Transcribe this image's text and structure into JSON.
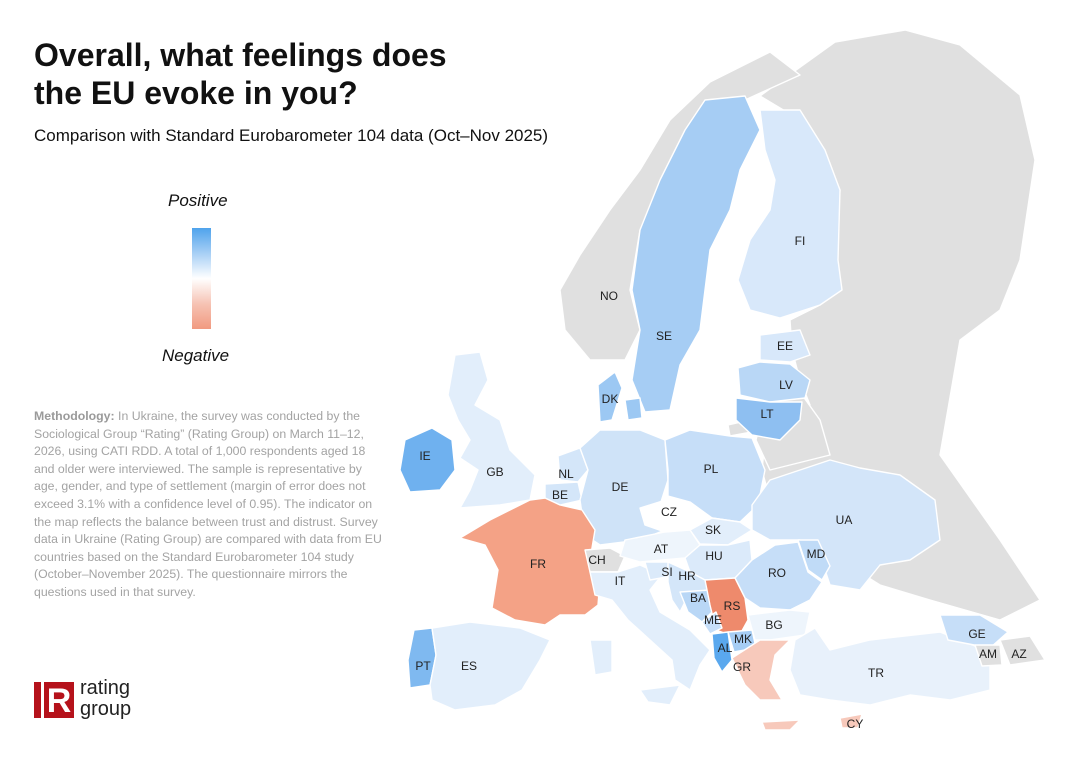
{
  "title": "Overall, what feelings does the EU evoke in you?",
  "subtitle": "Comparison with Standard Eurobarometer 104 data (Oct–Nov 2025)",
  "legend": {
    "top": "Positive",
    "bottom": "Negative"
  },
  "methodology": {
    "label": "Methodology:",
    "text": " In Ukraine, the survey was conducted by the Sociological Group “Rating” (Rating Group) on March 11–12, 2026, using CATI RDD. A total of 1,000 respondents aged 18 and older were interviewed. The sample is representative by age, gender, and type of settlement (margin of error does not exceed 3.1% with a confidence level of 0.95). The indicator on the map reflects the balance between trust and distrust. Survey data in Ukraine (Rating Group) are compared with data from EU countries based on the Standard Eurobarometer 104 study (October–November 2025). The questionnaire mirrors the questions used in that survey."
  },
  "logo": {
    "mark": "R",
    "line1": "rating",
    "line2": "group"
  },
  "colors": {
    "strong_positive": "#5aa8ee",
    "positive": "#9cc8f3",
    "light_positive": "#cfe3f8",
    "pale_positive": "#e2eefb",
    "neutral": "#ffffff",
    "light_negative": "#f7c9bb",
    "negative": "#f4a286",
    "strong_negative": "#ee8a6c",
    "no_data": "#e0e0e0"
  },
  "countries": {
    "NO": {
      "label": "NO",
      "fill": "#e0e0e0"
    },
    "SE": {
      "label": "SE",
      "fill": "#a6cdf4"
    },
    "FI": {
      "label": "FI",
      "fill": "#d8e8fa"
    },
    "EE": {
      "label": "EE",
      "fill": "#d8e8fa"
    },
    "LV": {
      "label": "LV",
      "fill": "#b9d7f6"
    },
    "LT": {
      "label": "LT",
      "fill": "#8ebff1"
    },
    "DK": {
      "label": "DK",
      "fill": "#9cc8f3"
    },
    "IE": {
      "label": "IE",
      "fill": "#6fb1ef"
    },
    "GB": {
      "label": "GB",
      "fill": "#e2eefb"
    },
    "NL": {
      "label": "NL",
      "fill": "#d4e6f9"
    },
    "BE": {
      "label": "BE",
      "fill": "#d4e6f9"
    },
    "DE": {
      "label": "DE",
      "fill": "#cfe3f8"
    },
    "PL": {
      "label": "PL",
      "fill": "#c6def8"
    },
    "CZ": {
      "label": "CZ",
      "fill": "#ffffff"
    },
    "SK": {
      "label": "SK",
      "fill": "#e2eefb"
    },
    "FR": {
      "label": "FR",
      "fill": "#f4a286"
    },
    "CH": {
      "label": "CH",
      "fill": "#e0e0e0"
    },
    "AT": {
      "label": "AT",
      "fill": "#eef5fc"
    },
    "HU": {
      "label": "HU",
      "fill": "#dbeafa"
    },
    "UA": {
      "label": "UA",
      "fill": "#d3e5f9"
    },
    "MD": {
      "label": "MD",
      "fill": "#c0dbf7"
    },
    "RO": {
      "label": "RO",
      "fill": "#c6def8"
    },
    "IT": {
      "label": "IT",
      "fill": "#e2eefb"
    },
    "SI": {
      "label": "SI",
      "fill": "#dbeafa"
    },
    "HR": {
      "label": "HR",
      "fill": "#d4e6f9"
    },
    "BA": {
      "label": "BA",
      "fill": "#b9d7f6"
    },
    "RS": {
      "label": "RS",
      "fill": "#ee8a6c"
    },
    "ME": {
      "label": "ME",
      "fill": "#c6def8"
    },
    "AL": {
      "label": "AL",
      "fill": "#5aa8ee"
    },
    "MK": {
      "label": "MK",
      "fill": "#a6cdf4"
    },
    "BG": {
      "label": "BG",
      "fill": "#eef5fc"
    },
    "GR": {
      "label": "GR",
      "fill": "#f7c9bb"
    },
    "TR": {
      "label": "TR",
      "fill": "#e8f1fb"
    },
    "CY": {
      "label": "CY",
      "fill": "#f7c9bb"
    },
    "PT": {
      "label": "PT",
      "fill": "#7fb9f0"
    },
    "ES": {
      "label": "ES",
      "fill": "#e2eefb"
    },
    "GE": {
      "label": "GE",
      "fill": "#c6def8"
    },
    "AM": {
      "label": "AM",
      "fill": "#e0e0e0"
    },
    "AZ": {
      "label": "AZ",
      "fill": "#e0e0e0"
    }
  }
}
